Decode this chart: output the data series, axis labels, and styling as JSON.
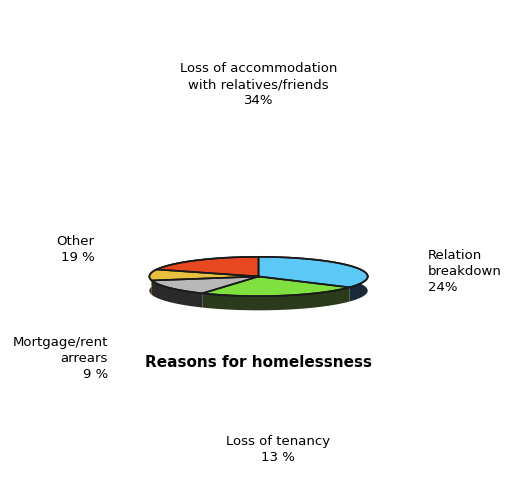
{
  "slices": [
    {
      "label": "Loss of accommodation\nwith relatives/friends\n34%",
      "value": 34,
      "color": "#5bc8f5",
      "dark_color": "#1a2a3a"
    },
    {
      "label": "Relation\nbreakdown\n24%",
      "value": 24,
      "color": "#80e040",
      "dark_color": "#2a3a1a"
    },
    {
      "label": "Loss of tenancy\n13 %",
      "value": 13,
      "color": "#b8b8b8",
      "dark_color": "#2a2a2a"
    },
    {
      "label": "Mortgage/rent\narrears\n9 %",
      "value": 9,
      "color": "#e8c040",
      "dark_color": "#3a2a10"
    },
    {
      "label": "Other\n19 %",
      "value": 19,
      "color": "#e84820",
      "dark_color": "#3a1a0a"
    }
  ],
  "title": "Reasons for homelessness",
  "background_color": "#ffffff",
  "startangle": 90,
  "label_coords": [
    [
      0.0,
      1.55,
      "center",
      "bottom"
    ],
    [
      1.55,
      0.05,
      "left",
      "center"
    ],
    [
      0.18,
      -1.45,
      "center",
      "top"
    ],
    [
      -1.38,
      -0.75,
      "right",
      "center"
    ],
    [
      -1.5,
      0.25,
      "right",
      "center"
    ]
  ]
}
